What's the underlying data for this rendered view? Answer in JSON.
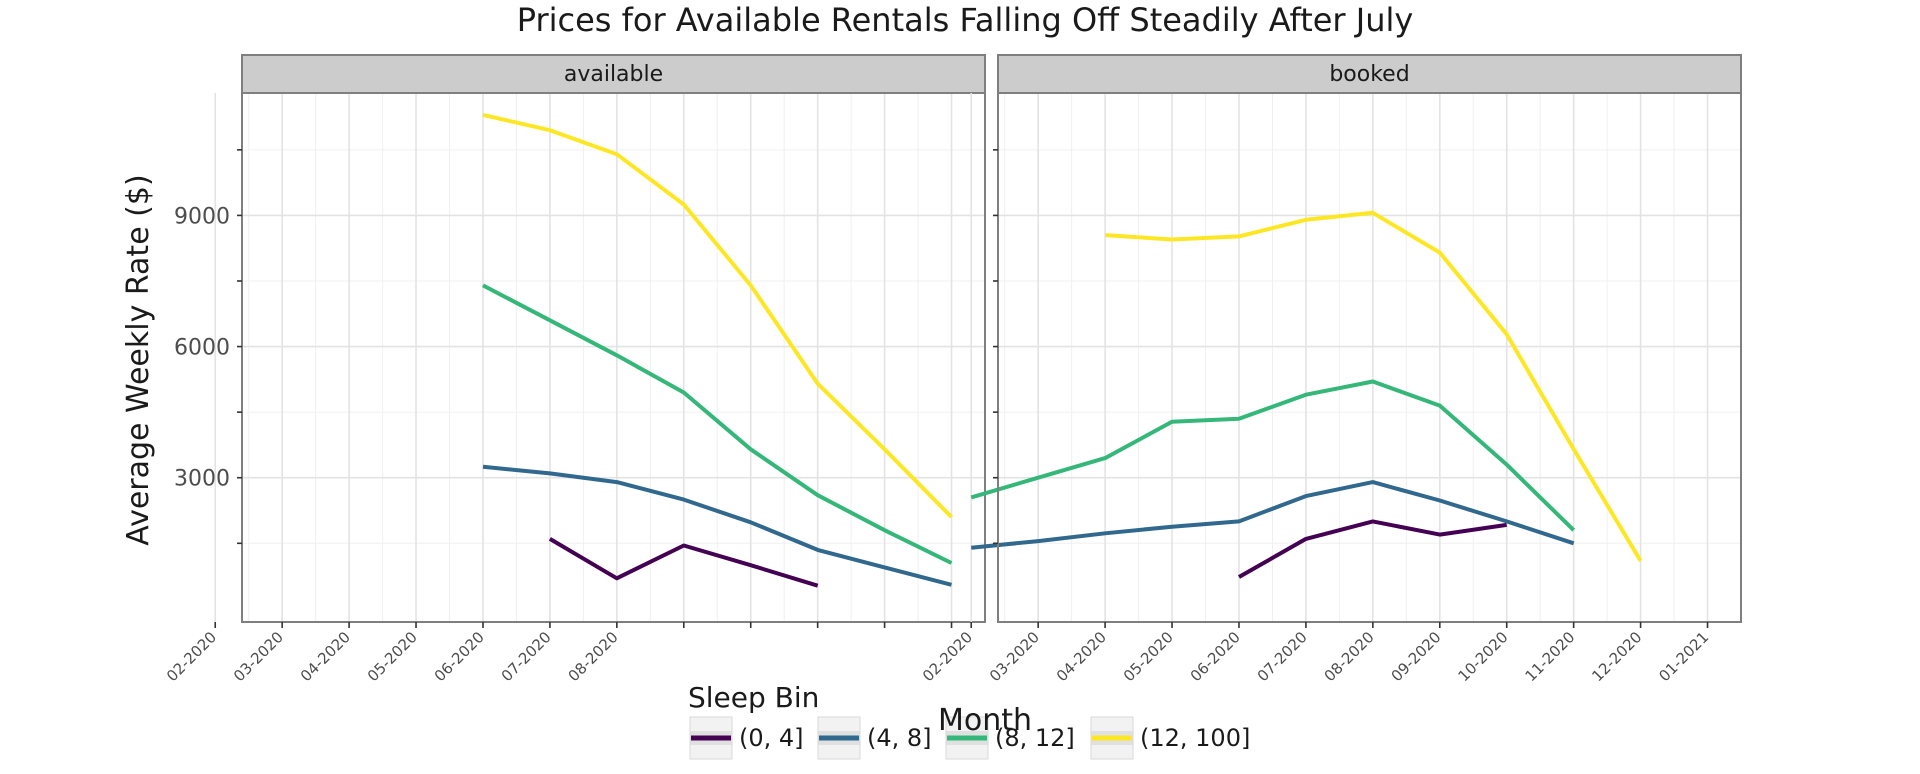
{
  "chart_data": {
    "type": "line",
    "title": "Prices for Available Rentals Falling Off Steadily After July",
    "xlabel": "Month",
    "ylabel": "Average Weekly Rate ($)",
    "y_ticks": [
      3000,
      6000,
      9000
    ],
    "ylim": [
      -300,
      11800
    ],
    "grid": true,
    "legend_position": "bottom",
    "legend_title": "Sleep Bin",
    "categories": [
      "(0, 4]",
      "(4, 8]",
      "(8, 12]",
      "(12, 100]"
    ],
    "colors": {
      "(0, 4]": "#440154",
      "(4, 8]": "#31688e",
      "(8, 12]": "#35b779",
      "(12, 100]": "#fde725"
    },
    "panels": [
      {
        "label": "available",
        "x_ticks": [
          "02-2020",
          "03-2020",
          "04-2020",
          "05-2020",
          "06-2020",
          "07-2020",
          "08-2020",
          "",
          "",
          "",
          "",
          ""
        ],
        "xrange": [
          0.4,
          11.5
        ],
        "series": [
          {
            "name": "(0, 4]",
            "x": [
              5,
              6,
              7,
              8,
              9
            ],
            "values": [
              1600,
              700,
              1450,
              1000,
              530
            ]
          },
          {
            "name": "(4, 8]",
            "x": [
              4,
              5,
              6,
              7,
              8,
              9,
              10,
              11
            ],
            "values": [
              3250,
              3100,
              2900,
              2500,
              1980,
              1350,
              950,
              550
            ]
          },
          {
            "name": "(8, 12]",
            "x": [
              4,
              5,
              6,
              7,
              8,
              9,
              10,
              11
            ],
            "values": [
              7400,
              6600,
              5800,
              4950,
              3650,
              2600,
              1800,
              1050
            ]
          },
          {
            "name": "(12, 100]",
            "x": [
              4,
              5,
              6,
              7,
              8,
              9,
              10,
              11
            ],
            "values": [
              11300,
              10950,
              10400,
              9250,
              7400,
              5150,
              3650,
              2100
            ]
          }
        ]
      },
      {
        "label": "booked",
        "x_ticks": [
          "02-2020",
          "03-2020",
          "04-2020",
          "05-2020",
          "06-2020",
          "07-2020",
          "08-2020",
          "09-2020",
          "10-2020",
          "11-2020",
          "12-2020",
          "01-2021"
        ],
        "xrange": [
          0.4,
          11.5
        ],
        "series": [
          {
            "name": "(0, 4]",
            "x": [
              4,
              5,
              6,
              7,
              8
            ],
            "values": [
              730,
              1600,
              2000,
              1700,
              1920
            ]
          },
          {
            "name": "(4, 8]",
            "x": [
              0,
              1,
              2,
              3,
              4,
              5,
              6,
              7,
              8,
              9
            ],
            "values": [
              1400,
              1550,
              1730,
              1880,
              2000,
              2580,
              2900,
              2480,
              2000,
              1500
            ]
          },
          {
            "name": "(8, 12]",
            "x": [
              0,
              1,
              2,
              3,
              4,
              5,
              6,
              7,
              8,
              9
            ],
            "values": [
              2550,
              3000,
              3450,
              4280,
              4350,
              4900,
              5200,
              4650,
              3300,
              1800
            ]
          },
          {
            "name": "(12, 100]",
            "x": [
              2,
              3,
              4,
              5,
              6,
              7,
              8,
              9,
              10
            ],
            "values": [
              8550,
              8450,
              8520,
              8900,
              9060,
              8150,
              6280,
              3650,
              1100
            ]
          }
        ]
      }
    ]
  }
}
